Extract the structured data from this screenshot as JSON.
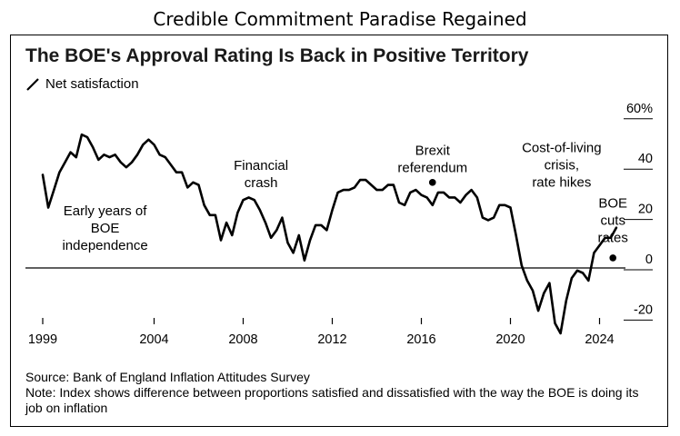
{
  "outer_title": "Credible Commitment Paradise Regained",
  "chart_data": {
    "type": "line",
    "title": "The BOE's Approval Rating Is Back in Positive Territory",
    "series": [
      {
        "name": "Net satisfaction",
        "color": "#000000",
        "x": [
          1999.0,
          1999.25,
          1999.5,
          1999.75,
          2000.0,
          2000.25,
          2000.5,
          2000.75,
          2001.0,
          2001.25,
          2001.5,
          2001.75,
          2002.0,
          2002.25,
          2002.5,
          2002.75,
          2003.0,
          2003.25,
          2003.5,
          2003.75,
          2004.0,
          2004.25,
          2004.5,
          2004.75,
          2005.0,
          2005.25,
          2005.5,
          2005.75,
          2006.0,
          2006.25,
          2006.5,
          2006.75,
          2007.0,
          2007.25,
          2007.5,
          2007.75,
          2008.0,
          2008.25,
          2008.5,
          2008.75,
          2009.0,
          2009.25,
          2009.5,
          2009.75,
          2010.0,
          2010.25,
          2010.5,
          2010.75,
          2011.0,
          2011.25,
          2011.5,
          2011.75,
          2012.0,
          2012.25,
          2012.5,
          2012.75,
          2013.0,
          2013.25,
          2013.5,
          2013.75,
          2014.0,
          2014.25,
          2014.5,
          2014.75,
          2015.0,
          2015.25,
          2015.5,
          2015.75,
          2016.0,
          2016.25,
          2016.5,
          2016.75,
          2017.0,
          2017.25,
          2017.5,
          2017.75,
          2018.0,
          2018.25,
          2018.5,
          2018.75,
          2019.0,
          2019.25,
          2019.5,
          2019.75,
          2020.0,
          2020.25,
          2020.5,
          2020.75,
          2021.0,
          2021.25,
          2021.5,
          2021.75,
          2022.0,
          2022.25,
          2022.5,
          2022.75,
          2023.0,
          2023.25,
          2023.5,
          2023.75,
          2024.0,
          2024.25,
          2024.5,
          2024.75
        ],
        "values": [
          37,
          24,
          31,
          38,
          42,
          46,
          44,
          53,
          52,
          48,
          43,
          45,
          44,
          45,
          42,
          40,
          42,
          45,
          49,
          51,
          49,
          45,
          44,
          41,
          38,
          38,
          32,
          34,
          33,
          25,
          21,
          21,
          11,
          18,
          13,
          22,
          27,
          28,
          27,
          23,
          18,
          12,
          15,
          20,
          10,
          6,
          13,
          3,
          11,
          17,
          17,
          15,
          23,
          30,
          31,
          31,
          32,
          35,
          35,
          33,
          31,
          31,
          33,
          33,
          26,
          25,
          30,
          31,
          29,
          28,
          25,
          30,
          30,
          28,
          28,
          26,
          29,
          31,
          28,
          20,
          19,
          20,
          25,
          25,
          24,
          13,
          1,
          -5,
          -9,
          -17,
          -10,
          -6,
          -22,
          -26,
          -13,
          -4,
          -1,
          -2,
          -5,
          6,
          9,
          12,
          12,
          16
        ]
      }
    ],
    "xlim": [
      1998.8,
      2025.2
    ],
    "ylim": [
      -25,
      61
    ],
    "x_ticks": [
      "1999",
      "2004",
      "2008",
      "2012",
      "2016",
      "2020",
      "2024"
    ],
    "y_ticks": [
      "60%",
      "40",
      "20",
      "0",
      "-20"
    ],
    "grid": false,
    "legend": "top-left",
    "annotations": [
      {
        "lines": [
          "Early years of",
          "BOE",
          "independence"
        ],
        "x": 2001.8,
        "y": 21
      },
      {
        "lines": [
          "Financial",
          "crash"
        ],
        "x": 2008.8,
        "y": 39
      },
      {
        "lines": [
          "Brexit",
          "referendum"
        ],
        "x": 2016.5,
        "y": 45,
        "marker_y": 34
      },
      {
        "lines": [
          "Cost-of-living",
          "crisis,",
          "rate hikes"
        ],
        "x": 2022.3,
        "y": 46
      },
      {
        "lines": [
          "BOE",
          "cuts",
          "rates"
        ],
        "x": 2024.6,
        "y": 24,
        "marker_y": 4
      }
    ]
  },
  "source_text": "Source: Bank of England Inflation Attitudes Survey",
  "note_text": "Note: Index shows difference between proportions satisfied and dissatisfied with the way the BOE is doing its job on inflation"
}
